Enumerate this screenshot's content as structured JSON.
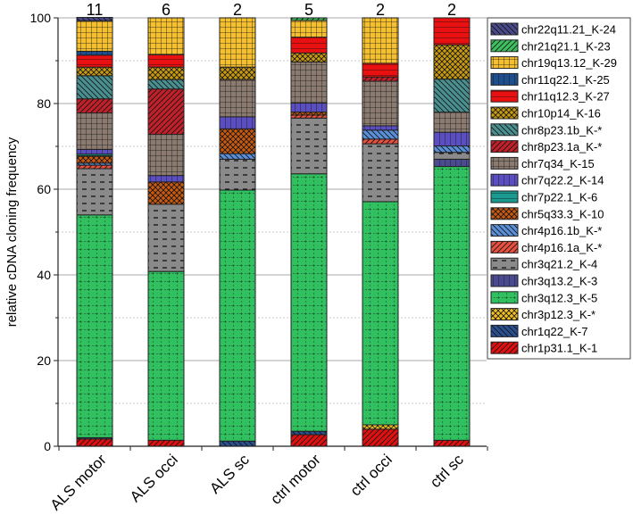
{
  "chart_data": {
    "type": "bar",
    "stacked": true,
    "title": "",
    "xlabel": "",
    "ylabel": "relative cDNA cloning frequency",
    "ylim": [
      0,
      100
    ],
    "yticks": [
      0,
      20,
      40,
      60,
      80,
      100
    ],
    "grid": true,
    "legend_placement": "right",
    "categories": [
      "ALS motor",
      "ALS occi",
      "ALS sc",
      "ctrl motor",
      "ctrl occi",
      "ctrl sc"
    ],
    "counts": [
      "11",
      "6",
      "2",
      "5",
      "2",
      "2"
    ],
    "series": [
      {
        "name": "chr1p31.1_K-1",
        "color": "#e01010",
        "pattern": "diag",
        "values": [
          1.7,
          1.4,
          0,
          2.7,
          4.0,
          1.4
        ]
      },
      {
        "name": "chr1q22_K-7",
        "color": "#2a5090",
        "pattern": "diagback",
        "values": [
          0.3,
          0,
          1.2,
          0.8,
          0,
          0
        ]
      },
      {
        "name": "chr3p12.3_K-*",
        "color": "#f0c020",
        "pattern": "cross",
        "values": [
          0,
          0,
          0,
          0,
          1.0,
          0
        ]
      },
      {
        "name": "chr3q12.3_K-5",
        "color": "#30c060",
        "pattern": "dotgrid",
        "values": [
          52.0,
          39.4,
          58.6,
          60.1,
          52.1,
          63.9
        ]
      },
      {
        "name": "chr3q13.2_K-3",
        "color": "#4a4a90",
        "pattern": "vert",
        "values": [
          0,
          0,
          0,
          0,
          0,
          1.7
        ]
      },
      {
        "name": "chr3q21.2_K-4",
        "color": "#8a8a8a",
        "pattern": "dash",
        "values": [
          10.8,
          15.7,
          7.2,
          13.0,
          13.5,
          1.6
        ]
      },
      {
        "name": "chr4p16.1a_K-*",
        "color": "#e85040",
        "pattern": "diag",
        "values": [
          0.8,
          0,
          0,
          0.7,
          1.1,
          0
        ]
      },
      {
        "name": "chr4p16.1b_K-*",
        "color": "#5a90d8",
        "pattern": "diagback",
        "values": [
          0.5,
          0,
          1.3,
          0,
          2.1,
          1.5
        ]
      },
      {
        "name": "chr5q33.3_K-10",
        "color": "#c85a10",
        "pattern": "cross",
        "values": [
          1.6,
          5.2,
          5.8,
          0.7,
          0,
          0
        ]
      },
      {
        "name": "chr7p22.1_K-6",
        "color": "#1a9a90",
        "pattern": "horiz",
        "values": [
          0.5,
          0,
          0,
          0,
          0,
          0
        ]
      },
      {
        "name": "chr7q22.2_K-14",
        "color": "#5a4ec0",
        "pattern": "vert",
        "values": [
          1.1,
          1.5,
          2.8,
          2.1,
          1.0,
          3.2
        ]
      },
      {
        "name": "chr7q34_K-15",
        "color": "#8a7a70",
        "pattern": "grid",
        "values": [
          8.5,
          9.6,
          8.7,
          9.6,
          10.4,
          4.7
        ]
      },
      {
        "name": "chr8p23.1a_K-*",
        "color": "#c0202a",
        "pattern": "diag",
        "values": [
          3.3,
          10.6,
          0,
          0,
          1.0,
          0
        ]
      },
      {
        "name": "chr8p23.1b_K-*",
        "color": "#4a9090",
        "pattern": "diagback",
        "values": [
          5.4,
          2.2,
          0,
          0,
          0,
          7.7
        ]
      },
      {
        "name": "chr10p14_K-16",
        "color": "#c89a10",
        "pattern": "cross",
        "values": [
          2.0,
          2.9,
          2.9,
          2.1,
          0,
          8.0
        ]
      },
      {
        "name": "chr11q12.3_K-27",
        "color": "#e81010",
        "pattern": "horiz",
        "values": [
          2.8,
          2.9,
          0,
          3.7,
          3.2,
          6.3
        ]
      },
      {
        "name": "chr11q22.1_K-25",
        "color": "#1f4e8c",
        "pattern": "vert",
        "values": [
          0.9,
          0,
          0,
          0,
          0,
          0
        ]
      },
      {
        "name": "chr19q13.12_K-29",
        "color": "#f5c030",
        "pattern": "grid",
        "values": [
          7.1,
          8.6,
          11.5,
          3.9,
          10.6,
          0
        ]
      },
      {
        "name": "chr21q21.1_K-23",
        "color": "#3cc060",
        "pattern": "diag",
        "values": [
          0,
          0,
          0,
          0.6,
          0,
          0
        ]
      },
      {
        "name": "chr22q11.21_K-24",
        "color": "#4a4a8a",
        "pattern": "diagback",
        "values": [
          0.8,
          0,
          0,
          0,
          0,
          0
        ]
      }
    ]
  }
}
